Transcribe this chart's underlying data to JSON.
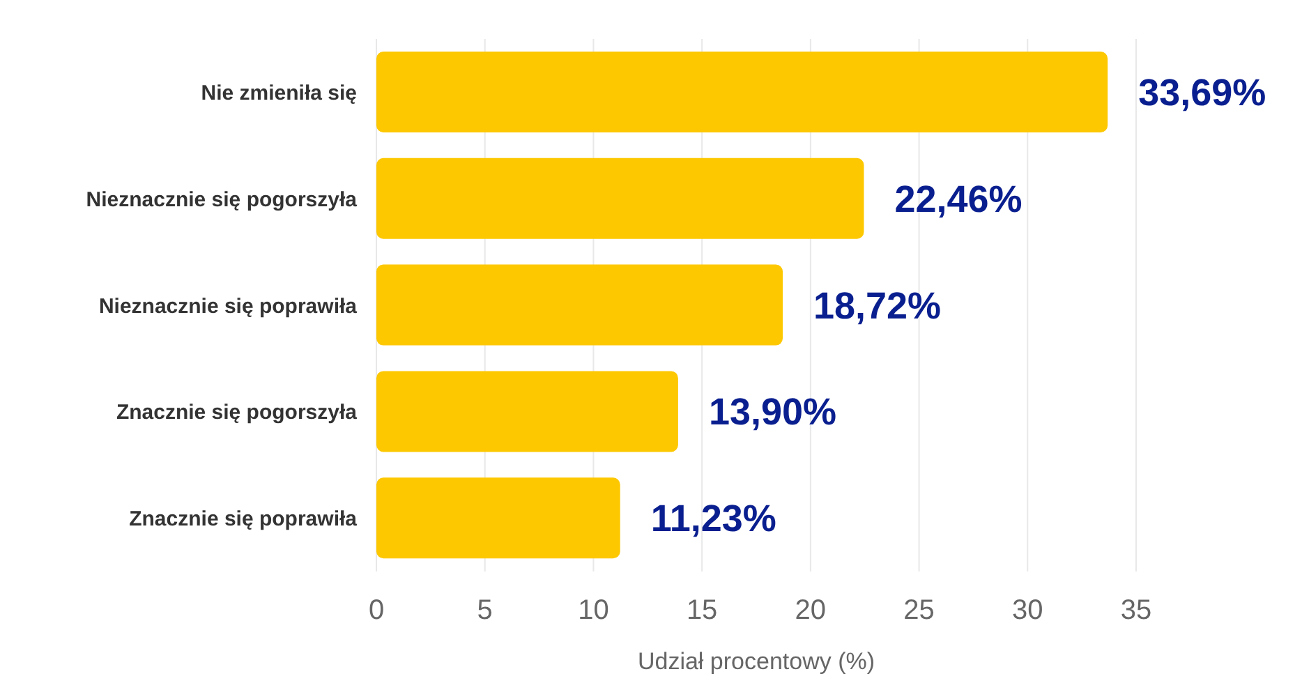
{
  "chart_data": {
    "type": "bar",
    "orientation": "horizontal",
    "xlabel": "Udział procentowy (%)",
    "categories": [
      "Nie zmieniła się",
      "Nieznacznie się pogorszyła",
      "Nieznacznie się poprawiła",
      "Znacznie się pogorszyła",
      "Znacznie się poprawiła"
    ],
    "values": [
      33.69,
      22.46,
      18.72,
      13.9,
      11.23
    ],
    "value_labels": [
      "33,69%",
      "22,46%",
      "18,72%",
      "13,90%",
      "11,23%"
    ],
    "color": "#fdc800",
    "xlim": [
      0,
      35
    ],
    "xticks": [
      0,
      5,
      10,
      15,
      20,
      25,
      30,
      35
    ],
    "grid": "x",
    "legend": false
  }
}
